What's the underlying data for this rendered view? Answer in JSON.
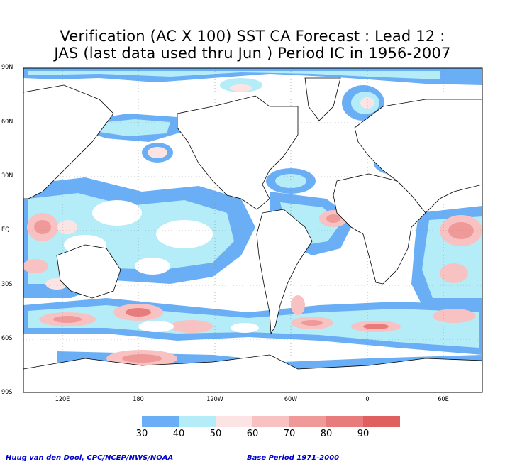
{
  "title_line1": "Verification (AC X 100) SST CA Forecast : Lead 12 :",
  "title_line2": "JAS (last data used thru Jun ) Period IC in 1956-2007",
  "lat_ticks": [
    "90N",
    "60N",
    "30N",
    "EQ",
    "30S",
    "60S",
    "90S"
  ],
  "lon_ticks": [
    "120E",
    "180",
    "120W",
    "60W",
    "0",
    "60E"
  ],
  "legend": {
    "labels": [
      "30",
      "40",
      "50",
      "60",
      "70",
      "80",
      "90"
    ],
    "colors": [
      "#6aaef5",
      "#b4ecf8",
      "#fde4e4",
      "#f8c2c2",
      "#f09999",
      "#e87c7c",
      "#e06060"
    ]
  },
  "footer_left": "Huug van den Dool, CPC/NCEP/NWS/NOAA",
  "footer_right": "Base Period 1971-2000",
  "colors": {
    "land_outline": "#000000",
    "grid": "#888888",
    "background": "#ffffff"
  }
}
